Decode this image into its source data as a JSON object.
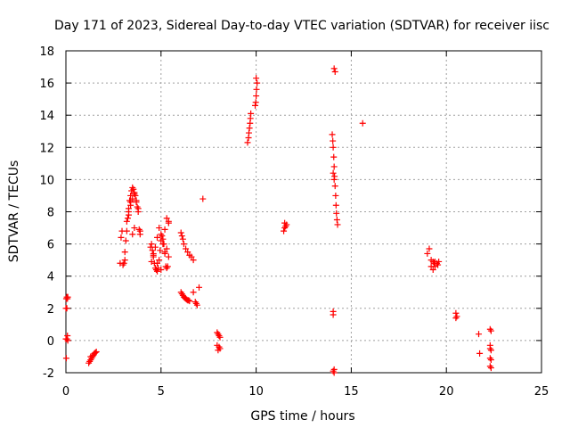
{
  "chart_data": {
    "type": "scatter",
    "title": "Day 171 of 2023, Sidereal Day-to-day VTEC variation (SDTVAR) for receiver iisc",
    "xlabel": "GPS time / hours",
    "ylabel": "SDTVAR / TECUs",
    "xlim": [
      0,
      25
    ],
    "ylim": [
      -2,
      18
    ],
    "xticks": [
      0,
      5,
      10,
      15,
      20,
      25
    ],
    "yticks": [
      -2,
      0,
      2,
      4,
      6,
      8,
      10,
      12,
      14,
      16,
      18
    ],
    "grid": true,
    "marker": "+",
    "color": "#ff0000",
    "series": [
      {
        "name": "SDTVAR",
        "x": [
          0.02,
          0.05,
          0.08,
          0.1,
          0.0,
          0.05,
          0.08,
          0.0,
          0.05,
          0.1,
          0.02,
          1.2,
          1.25,
          1.3,
          1.35,
          1.4,
          1.45,
          1.5,
          1.55,
          1.6,
          1.3,
          1.4,
          2.85,
          2.9,
          2.95,
          3.0,
          3.05,
          3.1,
          3.1,
          3.15,
          3.2,
          3.25,
          3.3,
          3.35,
          3.4,
          3.45,
          3.5,
          3.55,
          3.6,
          3.65,
          3.7,
          3.75,
          3.8,
          3.85,
          3.9,
          3.3,
          3.4,
          3.5,
          3.6,
          3.7,
          3.8,
          3.9,
          3.5,
          3.6,
          3.2,
          3.3,
          3.4,
          4.45,
          4.5,
          4.55,
          4.6,
          4.65,
          4.7,
          4.75,
          4.8,
          4.85,
          4.9,
          4.95,
          5.0,
          5.05,
          5.1,
          5.15,
          5.2,
          5.25,
          5.3,
          5.35,
          5.4,
          4.5,
          4.6,
          4.7,
          4.8,
          4.9,
          5.0,
          5.1,
          5.2,
          5.3,
          5.4,
          4.6,
          4.8,
          5.0,
          5.2,
          5.3,
          5.4,
          6.05,
          6.1,
          6.15,
          6.2,
          6.25,
          6.3,
          6.35,
          6.4,
          6.45,
          6.5,
          6.05,
          6.1,
          6.15,
          6.2,
          6.3,
          6.4,
          6.5,
          6.6,
          6.7,
          6.8,
          6.85,
          6.9,
          7.0,
          6.7,
          7.2,
          7.95,
          8.0,
          8.05,
          8.1,
          7.95,
          8.05,
          8.1,
          8.0,
          9.55,
          9.6,
          9.62,
          9.65,
          9.68,
          9.7,
          9.72,
          9.95,
          9.98,
          10.0,
          10.02,
          10.05,
          10.0,
          11.45,
          11.5,
          11.55,
          11.6,
          11.5,
          14.0,
          14.03,
          14.05,
          14.08,
          14.1,
          14.12,
          14.15,
          14.18,
          14.2,
          14.22,
          14.25,
          14.28,
          14.1,
          14.15,
          14.05,
          14.05,
          14.1,
          14.05,
          14.1,
          14.05,
          14.1,
          15.6,
          19.0,
          19.1,
          19.2,
          19.3,
          19.35,
          19.4,
          19.5,
          19.55,
          19.6,
          19.2,
          19.3,
          19.4,
          20.5,
          20.55,
          20.5,
          21.7,
          21.75,
          22.3,
          22.35,
          22.3,
          22.35,
          22.3,
          22.35,
          22.3,
          22.35,
          22.3
        ],
        "y": [
          2.6,
          2.7,
          2.6,
          2.7,
          2.0,
          2.0,
          0.3,
          0.1,
          0.1,
          0.0,
          -1.1,
          -1.4,
          -1.3,
          -1.2,
          -1.1,
          -1.0,
          -0.9,
          -0.8,
          -0.75,
          -0.7,
          -1.0,
          -0.95,
          4.8,
          6.4,
          6.8,
          4.7,
          4.8,
          5.0,
          5.5,
          6.2,
          6.8,
          7.6,
          8.2,
          8.7,
          9.0,
          9.3,
          9.5,
          9.4,
          9.2,
          9.0,
          8.6,
          8.3,
          8.0,
          6.9,
          6.6,
          8.0,
          8.4,
          8.8,
          9.1,
          8.7,
          8.2,
          6.8,
          6.6,
          7.0,
          7.4,
          7.8,
          8.6,
          5.8,
          6.0,
          5.6,
          5.2,
          4.8,
          4.5,
          4.4,
          4.3,
          4.5,
          5.0,
          5.6,
          6.2,
          6.5,
          6.3,
          6.0,
          5.5,
          4.6,
          4.5,
          4.6,
          5.2,
          4.9,
          5.3,
          5.8,
          6.4,
          7.0,
          6.6,
          6.0,
          5.4,
          5.7,
          7.4,
          5.4,
          4.8,
          4.4,
          6.9,
          7.6,
          7.3,
          3.0,
          2.9,
          2.8,
          2.7,
          2.65,
          2.6,
          2.55,
          2.5,
          2.5,
          2.45,
          6.7,
          6.5,
          6.3,
          6.0,
          5.7,
          5.5,
          5.3,
          5.2,
          5.0,
          2.4,
          2.3,
          2.2,
          3.3,
          3.0,
          8.8,
          0.5,
          0.4,
          0.3,
          0.2,
          -0.3,
          -0.4,
          -0.5,
          -0.6,
          12.3,
          12.6,
          12.9,
          13.2,
          13.5,
          13.8,
          14.1,
          14.6,
          14.8,
          15.2,
          15.6,
          16.0,
          16.3,
          6.8,
          7.0,
          7.1,
          7.2,
          7.3,
          12.8,
          12.4,
          12.0,
          11.4,
          10.8,
          10.2,
          9.6,
          9.0,
          8.4,
          7.9,
          7.5,
          7.2,
          16.9,
          16.7,
          1.8,
          1.6,
          -1.8,
          -1.9,
          -2.0,
          10.4,
          10.0,
          13.5,
          5.4,
          5.7,
          4.6,
          4.4,
          4.8,
          4.9,
          4.8,
          4.7,
          4.9,
          5.0,
          4.9,
          4.6,
          1.7,
          1.5,
          1.4,
          0.4,
          -0.8,
          0.7,
          0.6,
          -0.5,
          -0.6,
          -1.1,
          -1.2,
          -1.6,
          -1.7,
          -0.3
        ]
      }
    ]
  }
}
